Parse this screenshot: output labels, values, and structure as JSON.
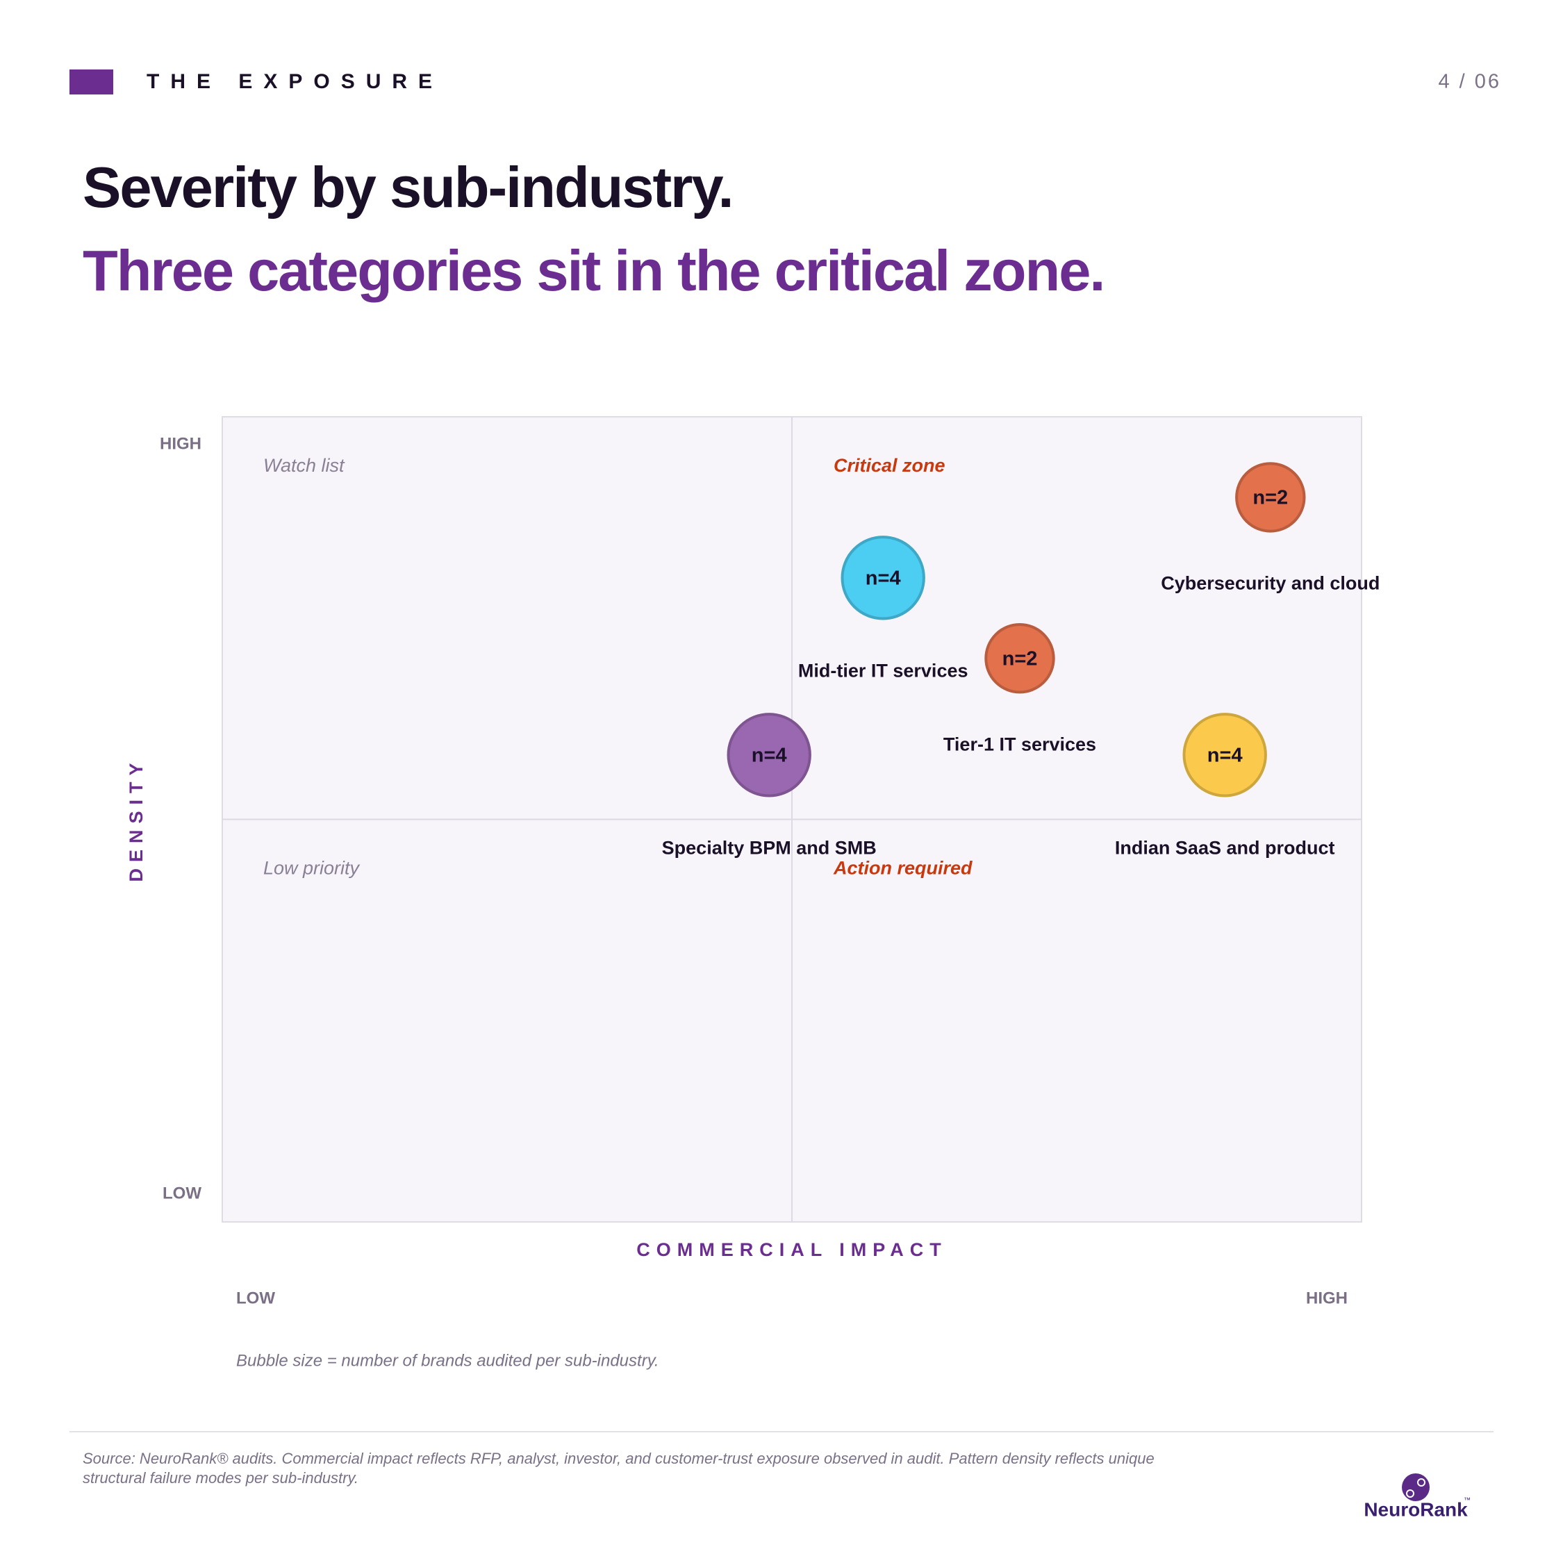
{
  "header": {
    "section": "THE EXPOSURE",
    "page": "4 / 06",
    "title": "Severity by sub-industry.",
    "subtitle": "Three categories sit in the critical zone."
  },
  "chart_data": {
    "type": "bubble",
    "x_label": "COMMERCIAL IMPACT",
    "y_label": "DENSITY",
    "xlim": [
      0,
      100
    ],
    "ylim": [
      0,
      100
    ],
    "xticks": [
      {
        "value": 0,
        "label": "LOW"
      },
      {
        "value": 100,
        "label": "HIGH"
      }
    ],
    "yticks": [
      {
        "value": 0,
        "label": "LOW"
      },
      {
        "value": 100,
        "label": "HIGH"
      }
    ],
    "quadrants": {
      "top_left": "Watch list",
      "top_right": "Critical zone",
      "bottom_left": "Low priority",
      "bottom_right": "Action required"
    },
    "series": [
      {
        "name": "Cybersecurity and cloud",
        "color": "#e2714c",
        "x": [
          92
        ],
        "values": [
          90
        ],
        "sizes": [
          2
        ],
        "size_labels": [
          "n=2"
        ]
      },
      {
        "name": "Mid-tier IT services",
        "color": "#4ccdf2",
        "x": [
          58
        ],
        "values": [
          80
        ],
        "sizes": [
          4
        ],
        "size_labels": [
          "n=4"
        ]
      },
      {
        "name": "Tier-1 IT services",
        "color": "#e2714c",
        "x": [
          70
        ],
        "values": [
          70
        ],
        "sizes": [
          2
        ],
        "size_labels": [
          "n=2"
        ]
      },
      {
        "name": "Specialty BPM and SMB",
        "color": "#9a68b0",
        "x": [
          48
        ],
        "values": [
          58
        ],
        "sizes": [
          4
        ],
        "size_labels": [
          "n=4"
        ]
      },
      {
        "name": "Indian SaaS and product",
        "color": "#fbca4c",
        "x": [
          88
        ],
        "values": [
          58
        ],
        "sizes": [
          4
        ],
        "size_labels": [
          "n=4"
        ]
      }
    ],
    "note": "Bubble size = number of brands audited per sub-industry."
  },
  "footer": {
    "source": "Source: NeuroRank® audits. Commercial impact reflects RFP, analyst, investor, and customer-trust exposure observed in audit. Pattern density reflects unique structural failure modes per sub-industry.",
    "logo": "NeuroRank",
    "trademark": "™"
  }
}
